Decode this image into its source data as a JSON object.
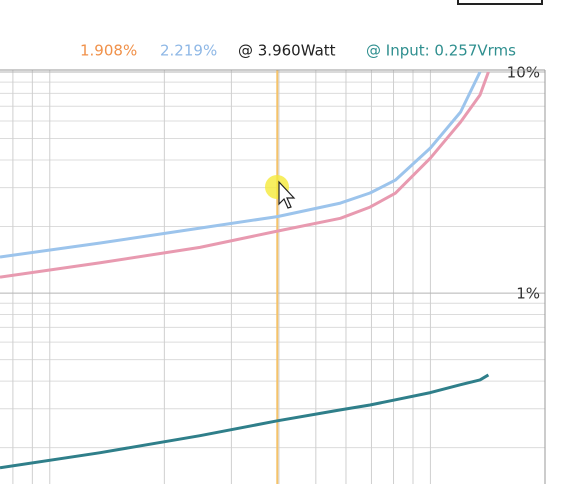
{
  "chart_data": {
    "type": "line",
    "readouts": [
      {
        "text": "1.908%",
        "color": "#f0914a"
      },
      {
        "text": "2.219%",
        "color": "#8fb8e6"
      },
      {
        "text": "@ 3.960Watt",
        "color": "#222222"
      },
      {
        "text": "@ Input: 0.257Vrms",
        "color": "#2f8f8f"
      }
    ],
    "cursor": {
      "x": 3.96,
      "color": "#f5c36a"
    },
    "x": [
      0.74,
      1.35,
      2.48,
      3.96,
      5.8,
      6.94,
      8.09,
      10,
      12,
      13.5,
      14.2
    ],
    "series": [
      {
        "color": "#9cc4ec",
        "values": [
          1.456,
          1.683,
          1.968,
          2.219,
          2.554,
          2.835,
          3.245,
          4.53,
          6.59,
          10.0,
          null
        ]
      },
      {
        "color": "#e89ab0",
        "values": [
          1.18,
          1.37,
          1.61,
          1.908,
          2.18,
          2.45,
          2.83,
          4.08,
          5.94,
          7.87,
          10.0
        ]
      },
      {
        "color": "#2f7f8a",
        "axis": "y2",
        "values": [
          0.134,
          0.165,
          0.209,
          0.257,
          0.299,
          0.32,
          0.344,
          0.38,
          0.424,
          0.453,
          0.486
        ]
      }
    ],
    "xlim": [
      0.74,
      20
    ],
    "xticks": [
      0.8,
      0.9,
      1,
      2,
      3,
      4,
      5,
      6,
      7,
      8,
      9,
      10,
      20
    ],
    "xlog": true,
    "ylim": [
      0.137,
      10
    ],
    "yticks": [
      {
        "value": 1,
        "label": "1%"
      },
      {
        "value": 10,
        "label": "10%"
      }
    ],
    "yminor": [
      0.2,
      0.3,
      0.4,
      0.5,
      0.6,
      0.7,
      0.8,
      0.9,
      2,
      3,
      4,
      5,
      6,
      7,
      8,
      9
    ],
    "ylog": true,
    "y2lim": [
      0.107,
      32.4
    ],
    "y2log": true,
    "grid": true
  }
}
